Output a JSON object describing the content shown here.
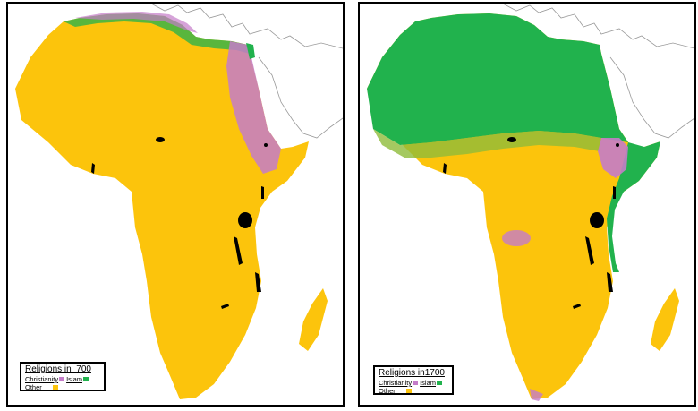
{
  "colors": {
    "christianity": "#c47cc9",
    "islam": "#21b24d",
    "other": "#fcc40c",
    "water_body": "#000000",
    "land_outline": "#8a8a8a"
  },
  "maps": [
    {
      "legend": {
        "title": "Religions in  700",
        "items": [
          {
            "label": "Christianity",
            "color_key": "christianity"
          },
          {
            "label": "Islam",
            "color_key": "islam"
          },
          {
            "label": "Other",
            "color_key": "other"
          }
        ]
      }
    },
    {
      "legend": {
        "title": "Religions in1700",
        "items": [
          {
            "label": "Christianity",
            "color_key": "christianity"
          },
          {
            "label": "Islam",
            "color_key": "islam"
          },
          {
            "label": "Other",
            "color_key": "other"
          }
        ]
      }
    }
  ]
}
